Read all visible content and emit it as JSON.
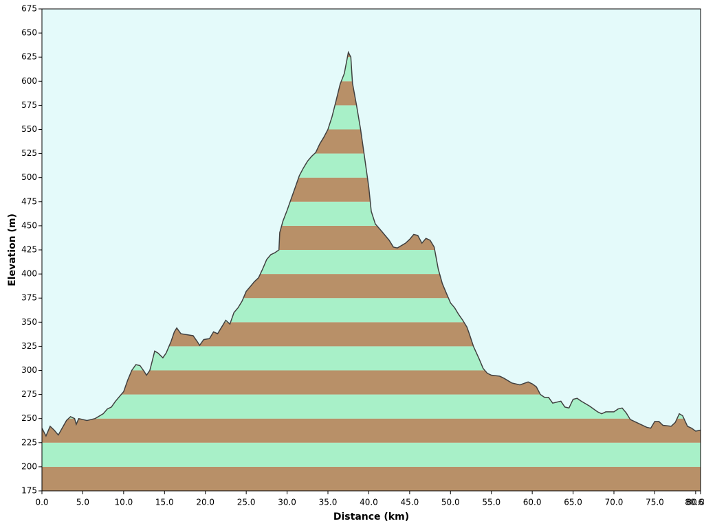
{
  "chart_data": {
    "type": "area",
    "x_label": "Distance  (km)",
    "y_label": "Elevation (m)",
    "x": [
      0.0,
      0.5,
      1.0,
      1.5,
      2.0,
      3.0,
      3.5,
      4.0,
      4.2,
      4.5,
      5.5,
      6.5,
      7.5,
      8.0,
      8.5,
      9.0,
      10.0,
      10.5,
      11.0,
      11.5,
      12.0,
      12.5,
      12.8,
      13.2,
      13.5,
      13.8,
      14.2,
      14.8,
      15.2,
      15.8,
      16.2,
      16.5,
      17.0,
      18.5,
      19.0,
      19.3,
      19.8,
      20.5,
      21.0,
      21.5,
      22.0,
      22.5,
      23.0,
      23.5,
      24.0,
      24.5,
      25.0,
      25.5,
      26.0,
      26.5,
      27.0,
      27.5,
      28.0,
      28.5,
      29.0,
      29.1,
      29.5,
      30.0,
      30.5,
      31.0,
      31.5,
      32.0,
      32.5,
      33.0,
      33.5,
      34.0,
      34.5,
      35.0,
      35.5,
      36.0,
      36.5,
      37.0,
      37.5,
      37.8,
      38.0,
      38.5,
      39.0,
      39.5,
      40.0,
      40.3,
      40.8,
      41.5,
      42.5,
      43.0,
      43.5,
      44.5,
      45.0,
      45.5,
      46.0,
      46.5,
      47.0,
      47.5,
      48.0,
      48.5,
      49.0,
      49.5,
      50.0,
      50.5,
      51.0,
      51.5,
      52.0,
      52.3,
      52.8,
      53.5,
      54.0,
      54.5,
      55.0,
      56.0,
      56.5,
      57.5,
      58.5,
      59.5,
      60.0,
      60.5,
      61.0,
      61.5,
      62.0,
      62.5,
      63.5,
      64.0,
      64.5,
      65.0,
      65.5,
      66.0,
      67.0,
      68.0,
      68.5,
      69.0,
      70.0,
      70.5,
      71.0,
      71.5,
      72.0,
      73.0,
      74.0,
      74.5,
      75.0,
      75.5,
      76.0,
      77.0,
      77.5,
      78.0,
      78.4,
      79.0,
      79.5,
      80.0,
      80.6
    ],
    "values": [
      240,
      232,
      242,
      238,
      233,
      248,
      252,
      250,
      244,
      250,
      248,
      250,
      255,
      260,
      262,
      268,
      278,
      290,
      300,
      306,
      305,
      299,
      295,
      300,
      310,
      320,
      318,
      313,
      318,
      330,
      340,
      344,
      338,
      336,
      330,
      326,
      332,
      333,
      340,
      338,
      345,
      352,
      348,
      360,
      365,
      372,
      382,
      387,
      392,
      396,
      405,
      415,
      420,
      422,
      425,
      443,
      455,
      466,
      478,
      490,
      502,
      510,
      517,
      522,
      526,
      535,
      542,
      550,
      563,
      580,
      597,
      608,
      630,
      625,
      598,
      575,
      550,
      520,
      490,
      465,
      452,
      445,
      435,
      428,
      427,
      432,
      436,
      441,
      440,
      432,
      437,
      435,
      428,
      405,
      390,
      380,
      370,
      365,
      358,
      352,
      345,
      338,
      325,
      312,
      302,
      297,
      295,
      294,
      292,
      287,
      285,
      288,
      286,
      283,
      275,
      272,
      272,
      266,
      268,
      262,
      261,
      270,
      271,
      268,
      263,
      257,
      255,
      257,
      257,
      260,
      261,
      256,
      249,
      245,
      241,
      240,
      247,
      247,
      243,
      242,
      246,
      255,
      253,
      242,
      240,
      237,
      238
    ],
    "line_color": "#404040",
    "band_colors": [
      "#b89068",
      "#a8f0c8"
    ],
    "background": "#e4fafa",
    "xlim": [
      0,
      80.6
    ],
    "ylim": [
      175,
      675
    ],
    "xticks": [
      {
        "value": 0,
        "label": "0.0"
      },
      {
        "value": 5,
        "label": "5.0"
      },
      {
        "value": 10,
        "label": "10.0"
      },
      {
        "value": 15,
        "label": "15.0"
      },
      {
        "value": 20,
        "label": "20.0"
      },
      {
        "value": 25,
        "label": "25.0"
      },
      {
        "value": 30,
        "label": "30.0"
      },
      {
        "value": 35,
        "label": "35.0"
      },
      {
        "value": 40,
        "label": "40.0"
      },
      {
        "value": 45,
        "label": "45.0"
      },
      {
        "value": 50,
        "label": "50.0"
      },
      {
        "value": 55,
        "label": "55.0"
      },
      {
        "value": 60,
        "label": "60.0"
      },
      {
        "value": 65,
        "label": "65.0"
      },
      {
        "value": 70,
        "label": "70.0"
      },
      {
        "value": 75,
        "label": "75.0"
      },
      {
        "value": 80,
        "label": "80.0"
      },
      80.6
    ],
    "yticks": [
      175,
      200,
      225,
      250,
      275,
      300,
      325,
      350,
      375,
      400,
      425,
      450,
      475,
      500,
      525,
      550,
      575,
      600,
      625,
      650,
      675
    ]
  }
}
